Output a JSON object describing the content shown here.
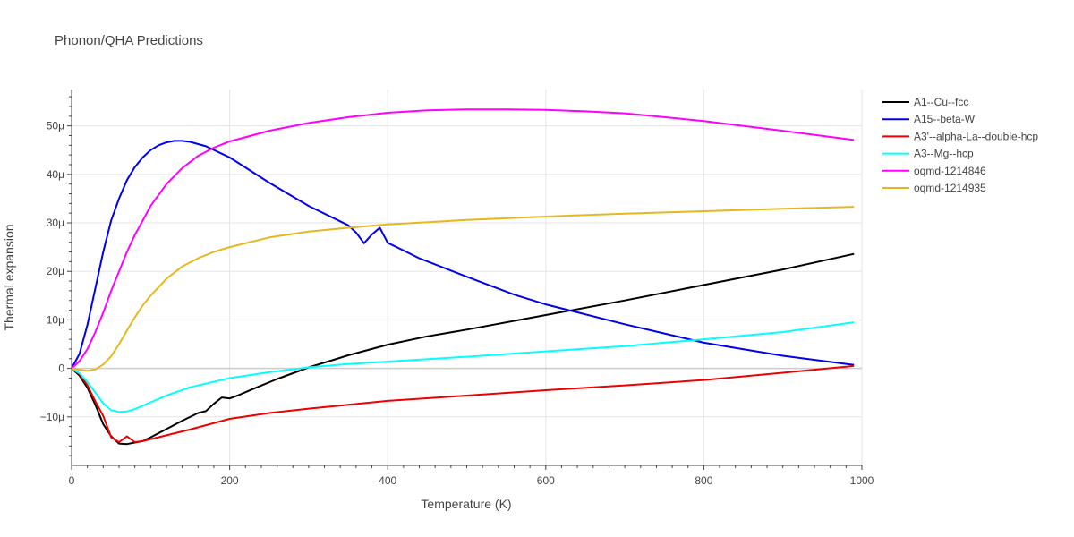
{
  "chart_data": {
    "type": "line",
    "title": "Phonon/QHA Predictions",
    "xlabel": "Temperature (K)",
    "ylabel": "Thermal expansion",
    "xlim": [
      0,
      1000
    ],
    "ylim": [
      -20,
      57.5
    ],
    "x_ticks": [
      0,
      200,
      400,
      600,
      800,
      1000
    ],
    "x_tick_labels": [
      "0",
      "200",
      "400",
      "600",
      "800",
      "1000"
    ],
    "y_ticks": [
      -10,
      0,
      10,
      20,
      30,
      40,
      50
    ],
    "y_tick_labels": [
      "−10μ",
      "0",
      "10μ",
      "20μ",
      "30μ",
      "40μ",
      "50μ"
    ],
    "y_unit_note": "values in units of 1e-6 (μ)",
    "grid": true,
    "legend_position": "right",
    "series": [
      {
        "name": "A1--Cu--fcc",
        "color": "#000000",
        "x": [
          0,
          10,
          20,
          30,
          40,
          50,
          60,
          70,
          80,
          90,
          100,
          120,
          140,
          160,
          170,
          180,
          190,
          200,
          210,
          230,
          260,
          300,
          350,
          400,
          450,
          500,
          600,
          700,
          800,
          900,
          990
        ],
        "y": [
          0,
          -1.5,
          -4.0,
          -7.5,
          -11.5,
          -14.0,
          -15.5,
          -15.6,
          -15.3,
          -15.0,
          -14.2,
          -12.5,
          -10.8,
          -9.2,
          -8.8,
          -7.3,
          -6.0,
          -6.2,
          -5.6,
          -4.2,
          -2.2,
          0.2,
          2.7,
          4.9,
          6.6,
          8.0,
          11.0,
          14.0,
          17.2,
          20.4,
          23.6
        ]
      },
      {
        "name": "A15--beta-W",
        "color": "#0000ee",
        "x": [
          0,
          10,
          20,
          30,
          40,
          50,
          60,
          70,
          80,
          90,
          100,
          110,
          120,
          130,
          140,
          150,
          170,
          200,
          250,
          300,
          350,
          360,
          370,
          380,
          390,
          400,
          420,
          440,
          500,
          560,
          600,
          700,
          800,
          900,
          990
        ],
        "y": [
          0,
          3.0,
          9.0,
          16.5,
          24.0,
          30.5,
          35.0,
          38.8,
          41.5,
          43.5,
          45.0,
          46.0,
          46.6,
          46.9,
          46.9,
          46.7,
          45.8,
          43.5,
          38.3,
          33.5,
          29.5,
          28.0,
          25.8,
          27.6,
          29.0,
          25.9,
          24.3,
          22.7,
          18.9,
          15.2,
          13.2,
          9.1,
          5.3,
          2.6,
          0.7
        ]
      },
      {
        "name": "A3'--alpha-La--double-hcp",
        "color": "#ee0000",
        "x": [
          0,
          10,
          20,
          30,
          40,
          50,
          60,
          70,
          80,
          90,
          100,
          120,
          150,
          200,
          250,
          300,
          350,
          400,
          500,
          600,
          700,
          800,
          900,
          990
        ],
        "y": [
          0,
          -1.2,
          -3.5,
          -6.8,
          -9.8,
          -14.2,
          -15.2,
          -14.0,
          -15.2,
          -15.0,
          -14.6,
          -13.8,
          -12.6,
          -10.4,
          -9.2,
          -8.3,
          -7.5,
          -6.7,
          -5.6,
          -4.5,
          -3.5,
          -2.4,
          -0.9,
          0.5
        ]
      },
      {
        "name": "A3--Mg--hcp",
        "color": "#00ffff",
        "x": [
          0,
          10,
          20,
          30,
          40,
          50,
          60,
          70,
          80,
          100,
          120,
          150,
          200,
          250,
          300,
          350,
          400,
          500,
          600,
          700,
          800,
          900,
          990
        ],
        "y": [
          0,
          -1.0,
          -2.8,
          -5.0,
          -7.2,
          -8.6,
          -9.0,
          -8.9,
          -8.4,
          -7.0,
          -5.6,
          -3.9,
          -2.0,
          -0.8,
          0.2,
          0.9,
          1.4,
          2.4,
          3.5,
          4.6,
          6.0,
          7.5,
          9.5
        ]
      },
      {
        "name": "oqmd-1214846",
        "color": "#ff00ff",
        "x": [
          0,
          10,
          20,
          30,
          40,
          50,
          60,
          70,
          80,
          90,
          100,
          120,
          140,
          160,
          180,
          200,
          250,
          300,
          350,
          400,
          450,
          500,
          550,
          600,
          650,
          700,
          800,
          900,
          990
        ],
        "y": [
          0,
          1.5,
          4.0,
          7.5,
          11.5,
          16.0,
          20.0,
          24.0,
          27.5,
          30.5,
          33.5,
          38.0,
          41.3,
          43.8,
          45.5,
          46.8,
          49.0,
          50.6,
          51.8,
          52.7,
          53.2,
          53.4,
          53.4,
          53.3,
          53.0,
          52.6,
          51.0,
          49.0,
          47.1
        ]
      },
      {
        "name": "oqmd-1214935",
        "color": "#e6b820",
        "x": [
          0,
          10,
          20,
          30,
          40,
          50,
          60,
          70,
          80,
          90,
          100,
          120,
          140,
          160,
          180,
          200,
          250,
          300,
          350,
          400,
          500,
          600,
          700,
          800,
          900,
          990
        ],
        "y": [
          0,
          -0.3,
          -0.5,
          -0.2,
          0.8,
          2.5,
          5.0,
          7.8,
          10.5,
          13.0,
          15.0,
          18.5,
          21.0,
          22.7,
          24.0,
          25.0,
          27.0,
          28.2,
          29.0,
          29.7,
          30.6,
          31.3,
          31.9,
          32.4,
          32.9,
          33.3
        ]
      }
    ]
  }
}
